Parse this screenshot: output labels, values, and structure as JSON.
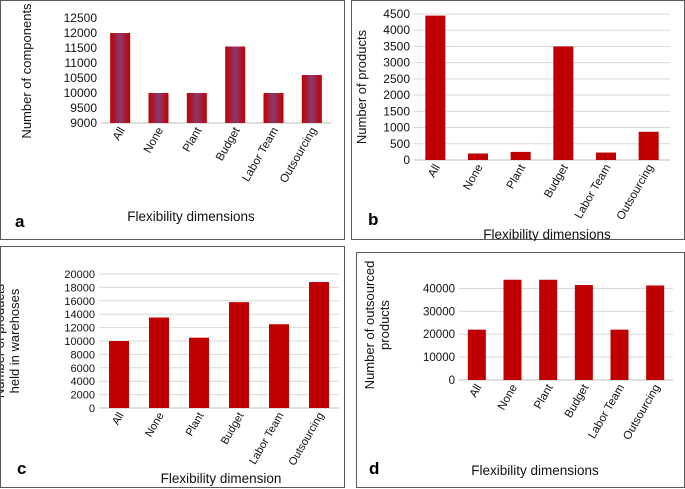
{
  "colors": {
    "bar": "#c00000",
    "bar_a_center": "#8a3a70",
    "grid": "#d9d9d9",
    "axis": "#bfbfbf"
  },
  "chart_data": [
    {
      "panel": "a",
      "type": "bar",
      "categories": [
        "All",
        "None",
        "Plant",
        "Budget",
        "Labor Team",
        "Outsourcing"
      ],
      "values": [
        12000,
        10000,
        10000,
        11550,
        10000,
        10600
      ],
      "xlabel": "Flexibility dimensions",
      "ylabel": "Number of components",
      "ylim": [
        9000,
        12500
      ],
      "yticks": [
        "9000",
        "9500",
        "10000",
        "10500",
        "11000",
        "11500",
        "12000",
        "12500"
      ],
      "grid": false
    },
    {
      "panel": "b",
      "type": "bar",
      "categories": [
        "All",
        "None",
        "Plant",
        "Budget",
        "Labor Team",
        "Outsourcing"
      ],
      "values": [
        4450,
        200,
        250,
        3500,
        230,
        870
      ],
      "xlabel": "Flexibility dimensions",
      "ylabel": "Number of products",
      "ylim": [
        0,
        4500
      ],
      "yticks": [
        "0",
        "500",
        "1000",
        "1500",
        "2000",
        "2500",
        "3000",
        "3500",
        "4000",
        "4500"
      ],
      "grid": true
    },
    {
      "panel": "c",
      "type": "bar",
      "categories": [
        "All",
        "None",
        "Plant",
        "Budget",
        "Labor Team",
        "Outsourcing"
      ],
      "values": [
        10000,
        13500,
        10500,
        15800,
        12500,
        18800
      ],
      "xlabel": "Flexibility dimension",
      "ylabel": "Number of products\nheld in warehoses",
      "ylim": [
        0,
        20000
      ],
      "yticks": [
        "0",
        "2000",
        "4000",
        "6000",
        "8000",
        "10000",
        "12000",
        "14000",
        "16000",
        "18000",
        "20000"
      ],
      "grid": true
    },
    {
      "panel": "d",
      "type": "bar",
      "categories": [
        "All",
        "None",
        "Plant",
        "Budget",
        "Labor Team",
        "Outsourcing"
      ],
      "values": [
        22000,
        43800,
        43800,
        41500,
        22000,
        41300
      ],
      "xlabel": "Flexibility dimensions",
      "ylabel": "Number of outsourced\nproducts",
      "ylim": [
        0,
        40000
      ],
      "ymax_draw": 45000,
      "yticks": [
        "0",
        "10000",
        "20000",
        "30000",
        "40000"
      ],
      "grid": true
    }
  ],
  "panels": {
    "a": "a",
    "b": "b",
    "c": "c",
    "d": "d"
  }
}
